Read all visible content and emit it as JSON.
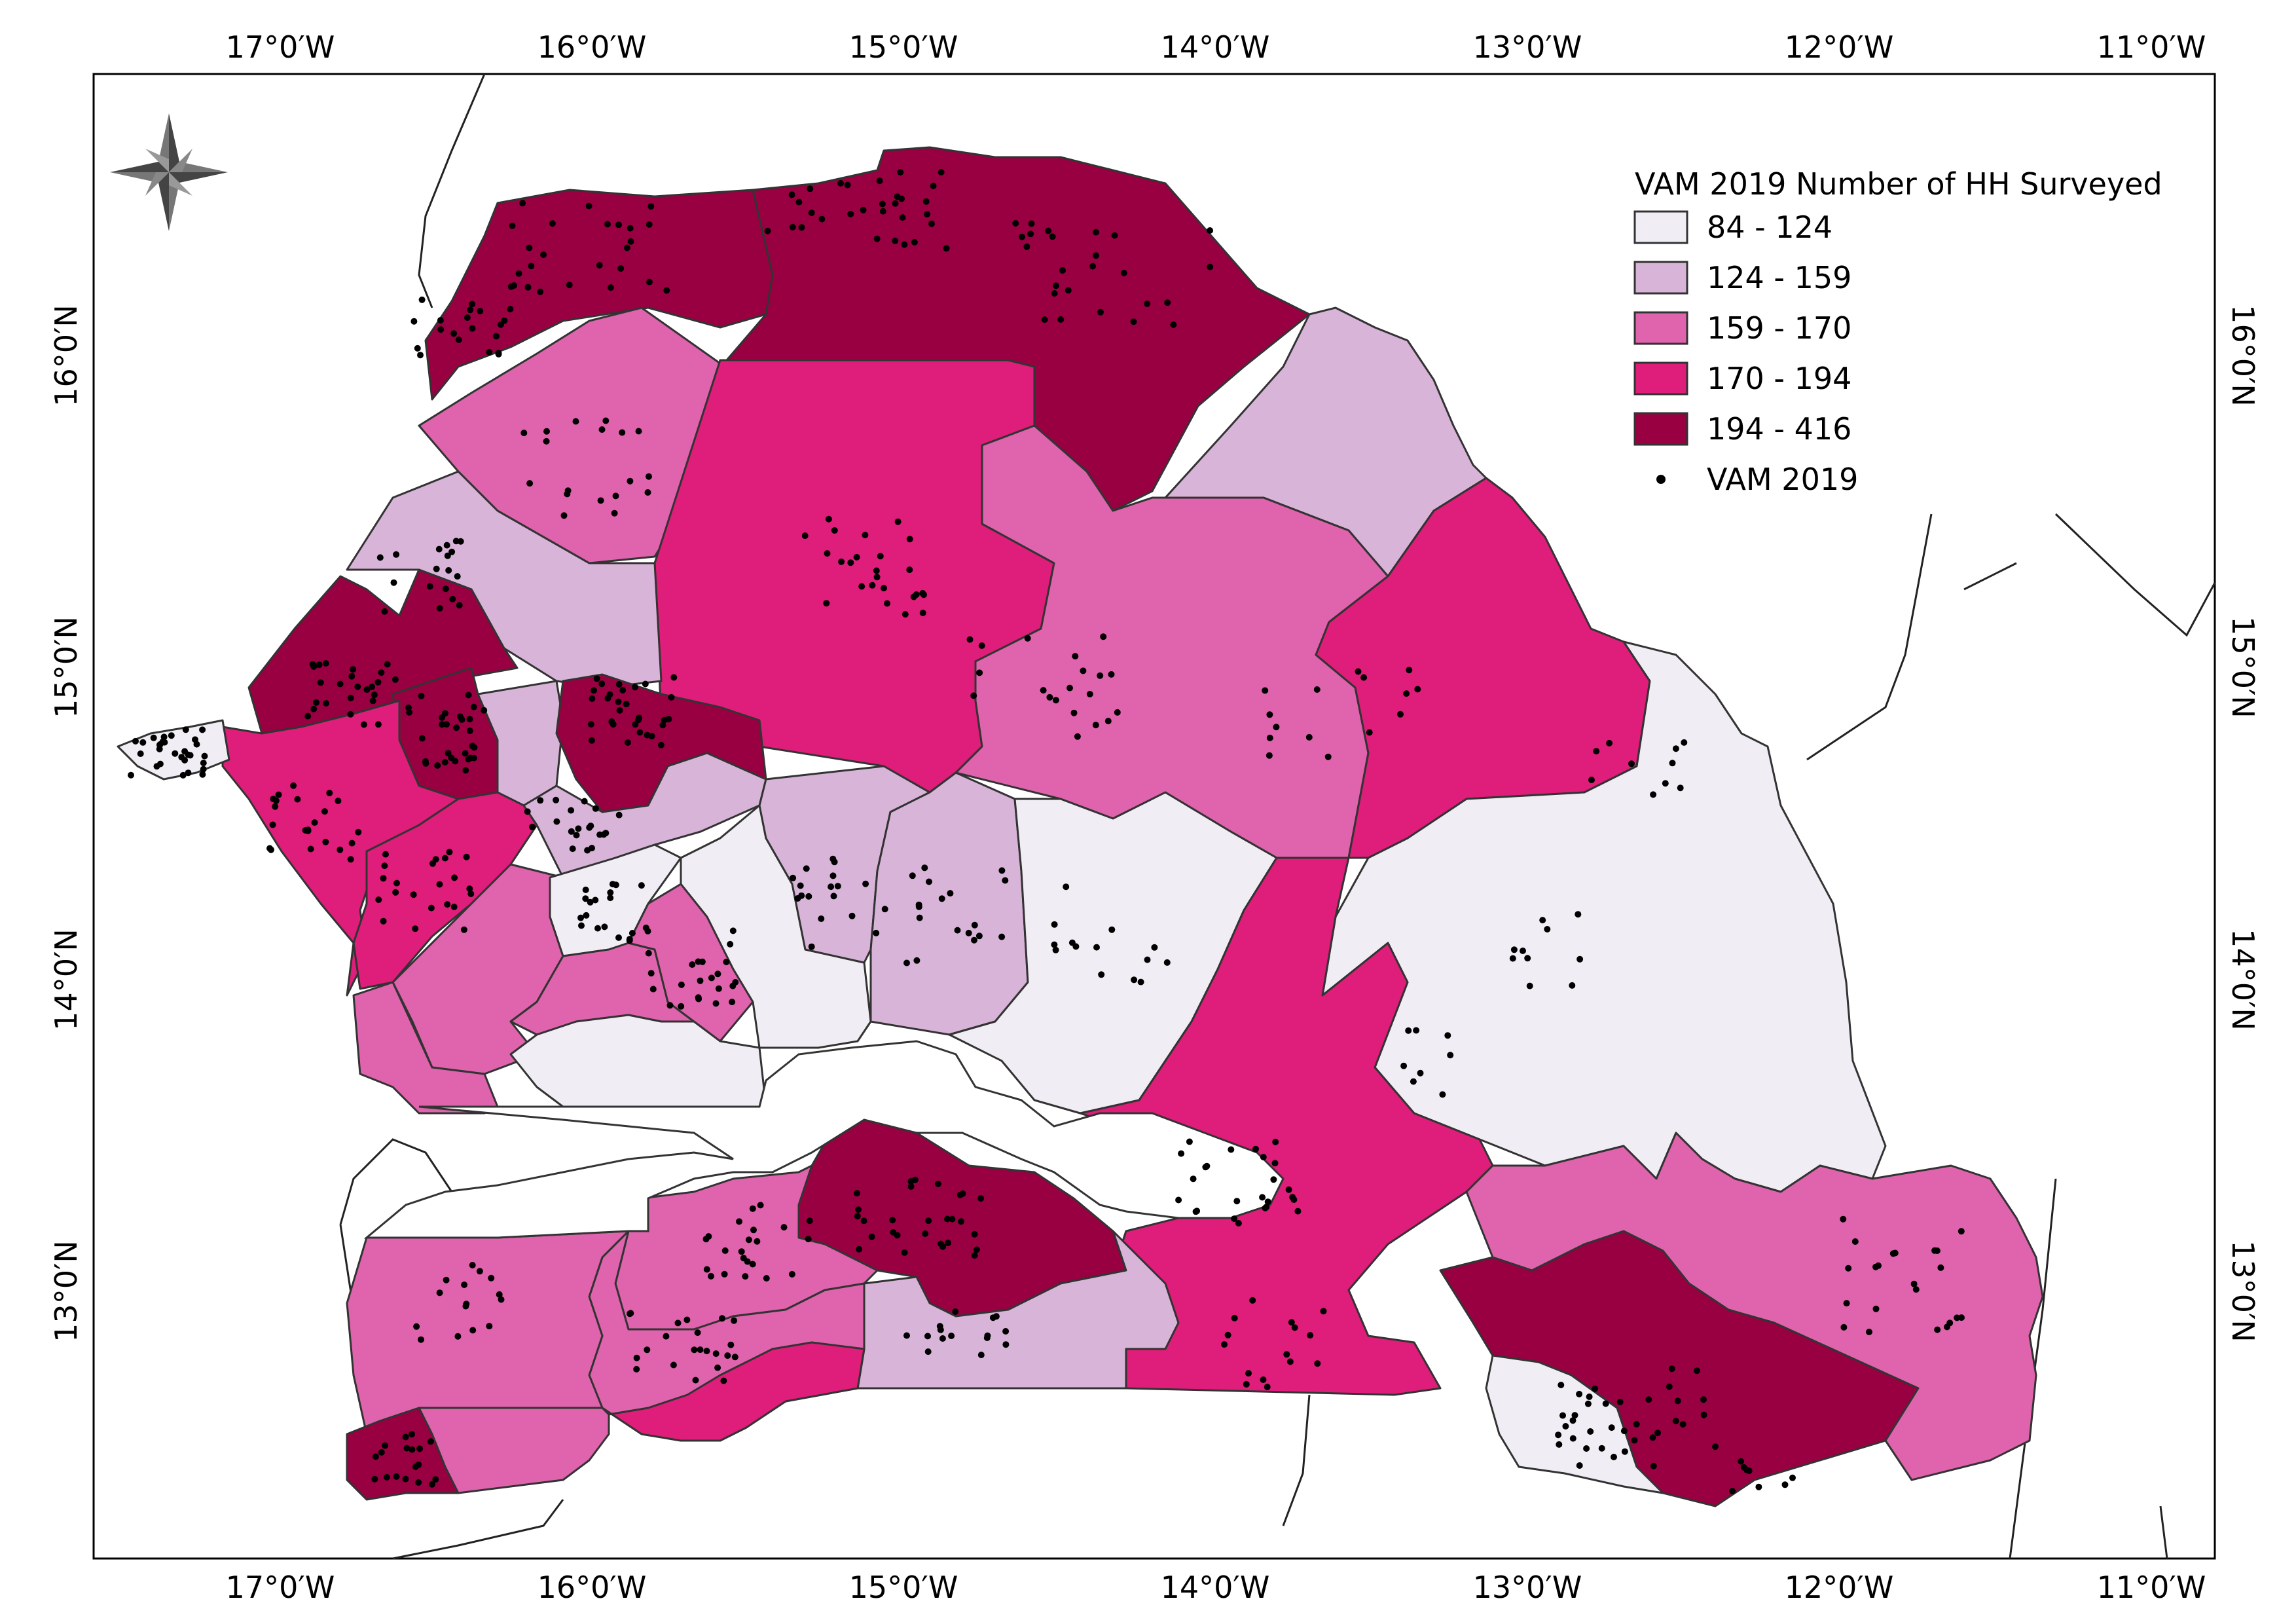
{
  "legend": {
    "title": "VAM 2019 Number of HH Surveyed",
    "classes": [
      {
        "label": "84 - 124",
        "color": "#f1edf4"
      },
      {
        "label": "124 - 159",
        "color": "#d8b4d8"
      },
      {
        "label": "159 - 170",
        "color": "#df63ad"
      },
      {
        "label": "170 - 194",
        "color": "#df1d7a"
      },
      {
        "label": "194 - 416",
        "color": "#990042"
      }
    ],
    "points_label": "VAM 2019"
  },
  "axes": {
    "lon_labels": [
      "17°0′W",
      "16°0′W",
      "15°0′W",
      "14°0′W",
      "13°0′W",
      "12°0′W",
      "11°0′W"
    ],
    "lat_labels": [
      "16°0′N",
      "15°0′N",
      "14°0′N",
      "13°0′N"
    ]
  },
  "north_arrow": {
    "icon": "compass-rose-icon"
  }
}
